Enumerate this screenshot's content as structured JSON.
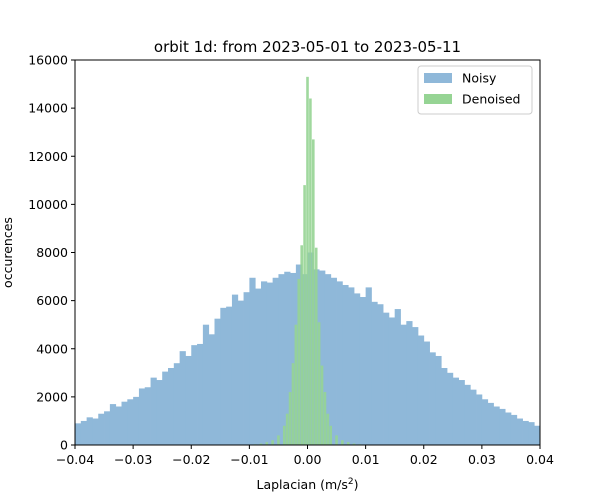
{
  "chart_data": {
    "type": "bar",
    "title": "orbit 1d: from 2023-05-01 to 2023-05-11",
    "xlabel": "Laplacian (m/s",
    "xlabel_sup": "2",
    "xlabel_close": ")",
    "ylabel": "occurences",
    "xlim": [
      -0.04,
      0.04
    ],
    "ylim": [
      0,
      16000
    ],
    "xticks": [
      -0.04,
      -0.03,
      -0.02,
      -0.01,
      0.0,
      0.01,
      0.02,
      0.03,
      0.04
    ],
    "xtick_labels": [
      "−0.04",
      "−0.03",
      "−0.02",
      "−0.01",
      "0.00",
      "0.01",
      "0.02",
      "0.03",
      "0.04"
    ],
    "yticks": [
      0,
      2000,
      4000,
      6000,
      8000,
      10000,
      12000,
      14000,
      16000
    ],
    "ytick_labels": [
      "0",
      "2000",
      "4000",
      "6000",
      "8000",
      "10000",
      "12000",
      "14000",
      "16000"
    ],
    "legend_placement": "top-right",
    "grid": false,
    "series": [
      {
        "name": "Noisy",
        "color": "#8fb8d9",
        "x": [
          -0.04,
          -0.039,
          -0.038,
          -0.037,
          -0.036,
          -0.035,
          -0.034,
          -0.033,
          -0.032,
          -0.031,
          -0.03,
          -0.029,
          -0.028,
          -0.027,
          -0.026,
          -0.025,
          -0.024,
          -0.023,
          -0.022,
          -0.021,
          -0.02,
          -0.019,
          -0.018,
          -0.017,
          -0.016,
          -0.015,
          -0.014,
          -0.013,
          -0.012,
          -0.011,
          -0.01,
          -0.009,
          -0.008,
          -0.007,
          -0.006,
          -0.005,
          -0.004,
          -0.003,
          -0.002,
          -0.001,
          0.0,
          0.001,
          0.002,
          0.003,
          0.004,
          0.005,
          0.006,
          0.007,
          0.008,
          0.009,
          0.01,
          0.011,
          0.012,
          0.013,
          0.014,
          0.015,
          0.016,
          0.017,
          0.018,
          0.019,
          0.02,
          0.021,
          0.022,
          0.023,
          0.024,
          0.025,
          0.026,
          0.027,
          0.028,
          0.029,
          0.03,
          0.031,
          0.032,
          0.033,
          0.034,
          0.035,
          0.036,
          0.037,
          0.038,
          0.039
        ],
        "values": [
          900,
          1000,
          1150,
          1100,
          1300,
          1400,
          1700,
          1600,
          1800,
          1900,
          2000,
          2350,
          2400,
          2800,
          2700,
          3050,
          3200,
          3400,
          3900,
          3700,
          4150,
          4200,
          5000,
          4600,
          5250,
          5700,
          5750,
          6250,
          6000,
          6350,
          6950,
          6500,
          6800,
          6750,
          6950,
          7100,
          7200,
          7150,
          7500,
          7100,
          8000,
          7300,
          7250,
          7100,
          6950,
          6800,
          6650,
          6550,
          6300,
          6150,
          6550,
          5950,
          5850,
          5500,
          5300,
          5650,
          5000,
          5150,
          4900,
          4550,
          4300,
          3850,
          3700,
          3200,
          3000,
          2800,
          2700,
          2500,
          2300,
          2100,
          1900,
          1750,
          1600,
          1500,
          1350,
          1250,
          1100,
          1000,
          950,
          800
        ]
      },
      {
        "name": "Denoised",
        "color": "#96d494",
        "x": [
          -0.009,
          -0.008,
          -0.007,
          -0.006,
          -0.005,
          -0.004,
          -0.0035,
          -0.003,
          -0.0025,
          -0.002,
          -0.0015,
          -0.001,
          -0.0005,
          0.0,
          0.0005,
          0.001,
          0.0015,
          0.002,
          0.0025,
          0.003,
          0.0035,
          0.004,
          0.005,
          0.006,
          0.007,
          0.008,
          0.009
        ],
        "values": [
          30,
          60,
          120,
          200,
          400,
          800,
          1300,
          2200,
          3400,
          5000,
          6900,
          8300,
          10800,
          15300,
          14400,
          12700,
          8200,
          5100,
          3300,
          2200,
          1300,
          800,
          400,
          200,
          120,
          60,
          30
        ]
      }
    ]
  }
}
